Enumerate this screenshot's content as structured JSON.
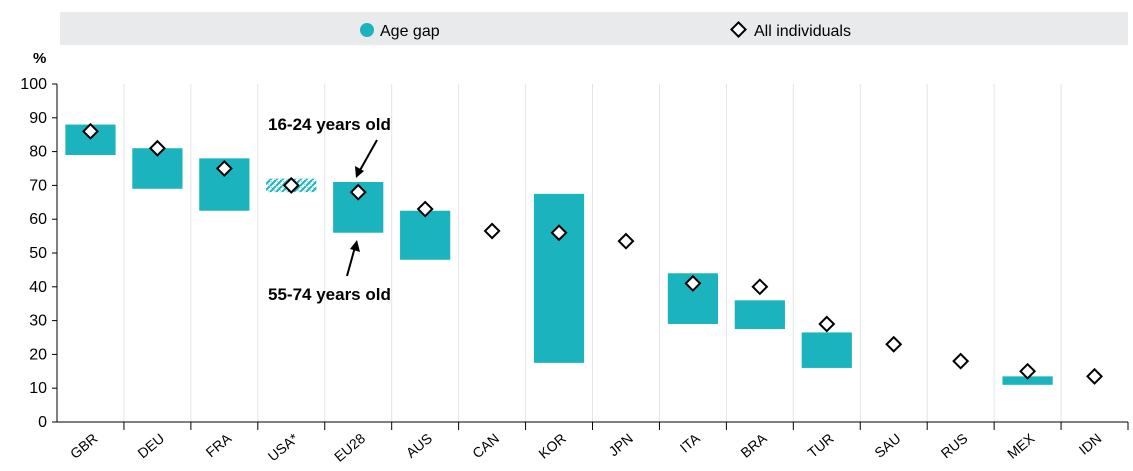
{
  "legend": {
    "gap_label": "Age gap",
    "all_label": "All individuals"
  },
  "annotations": {
    "young": "16-24 years old",
    "old": "55-74 years old"
  },
  "colors": {
    "bar": "#1BB3BE",
    "legend_bg": "#E9EAEC",
    "grid": "#FFFFFF",
    "plot_bg": "#FFFFFF",
    "axis": "#000000"
  },
  "chart_data": {
    "type": "bar",
    "ylabel": "%",
    "ylim": [
      0,
      100
    ],
    "yticks": [
      0,
      10,
      20,
      30,
      40,
      50,
      60,
      70,
      80,
      90,
      100
    ],
    "categories": [
      "GBR",
      "DEU",
      "FRA",
      "USA*",
      "EU28",
      "AUS",
      "CAN",
      "KOR",
      "JPN",
      "ITA",
      "BRA",
      "TUR",
      "SAU",
      "RUS",
      "MEX",
      "IDN"
    ],
    "series": [
      {
        "name": "Age gap",
        "low": [
          79,
          69,
          62.5,
          68,
          56,
          48,
          null,
          17.5,
          null,
          29,
          27.5,
          16,
          null,
          null,
          11,
          null
        ],
        "high": [
          88,
          81,
          78,
          72,
          71,
          62.5,
          null,
          67.5,
          null,
          44,
          36,
          26.5,
          null,
          null,
          13.5,
          null
        ]
      },
      {
        "name": "All individuals",
        "values": [
          86,
          81,
          75,
          70,
          68,
          63,
          56.5,
          56,
          53.5,
          41,
          40,
          29,
          23,
          18,
          15,
          13.5
        ]
      }
    ],
    "hatched": [
      "USA*"
    ],
    "legend_position": "top"
  }
}
